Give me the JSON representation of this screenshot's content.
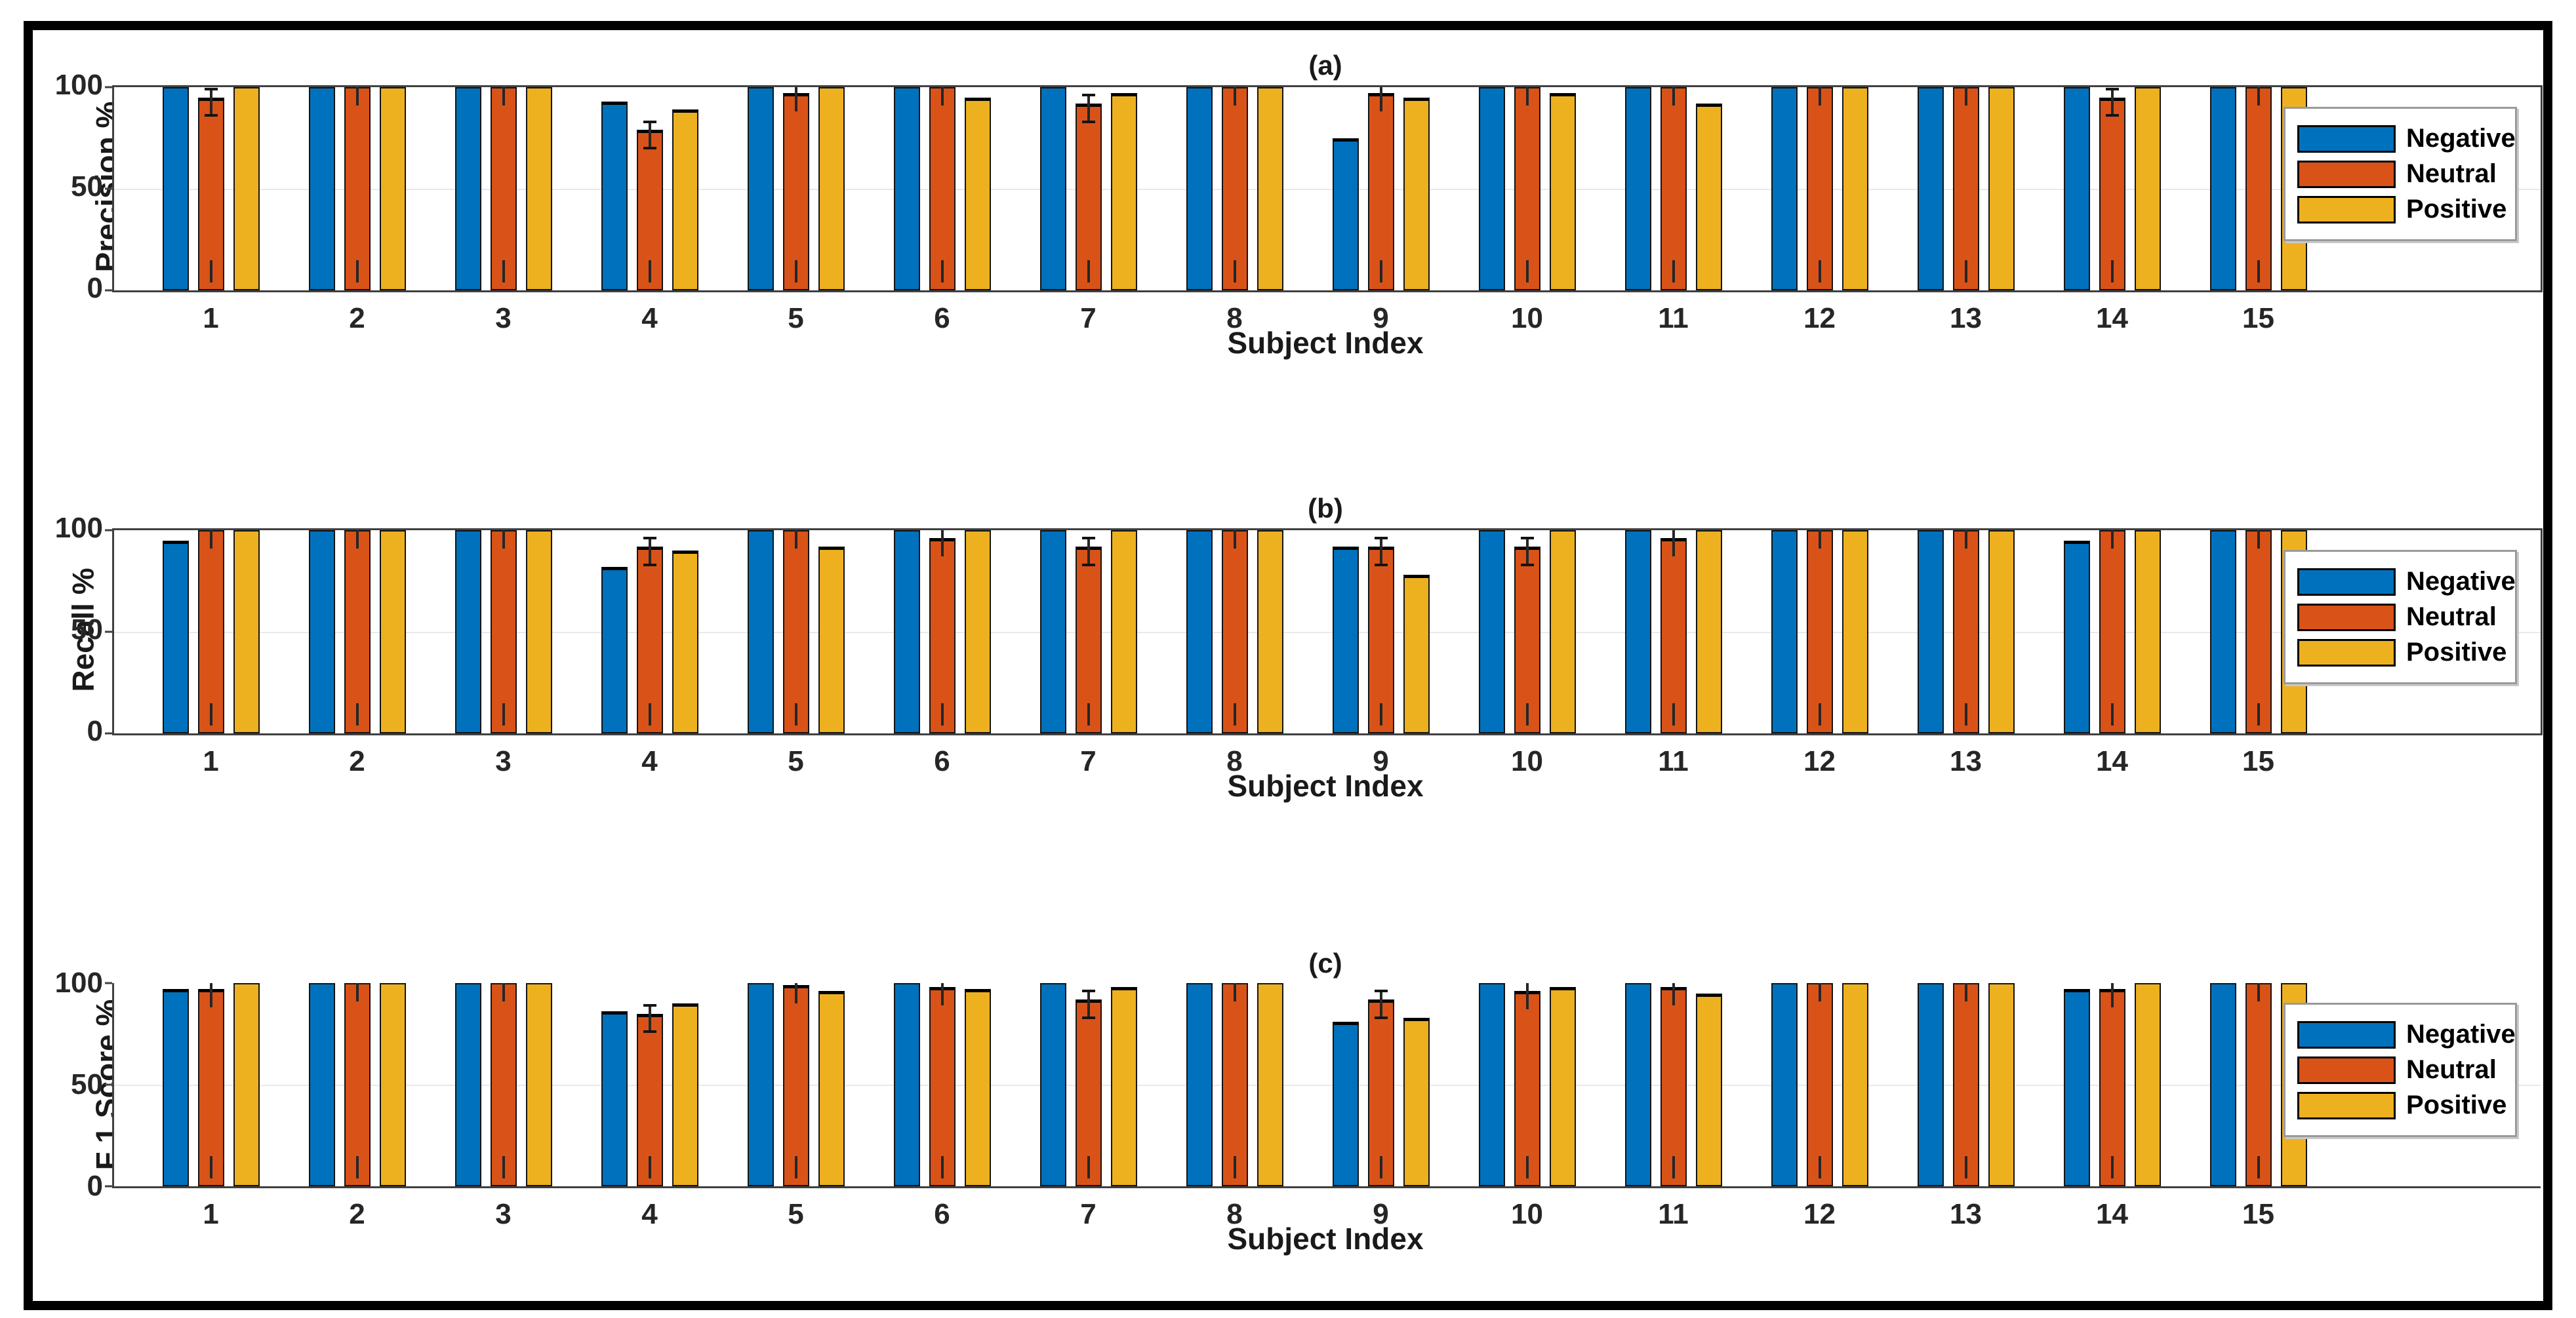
{
  "figure": {
    "background": "#ffffff",
    "border_color": "#000000",
    "axis_color": "#404040",
    "grid_color": "#e9e9e9",
    "text_color": "#1a1a1a"
  },
  "legend": {
    "position": "right-inside",
    "items": [
      {
        "label": "Negative",
        "color": "#0072BD"
      },
      {
        "label": "Neutral",
        "color": "#D95319"
      },
      {
        "label": "Positive",
        "color": "#EDB120"
      }
    ]
  },
  "chart_data": [
    {
      "id": "a",
      "type": "bar",
      "title": "(a)",
      "ylabel": "Precision %",
      "xlabel": "Subject Index",
      "categories": [
        "1",
        "2",
        "3",
        "4",
        "5",
        "6",
        "7",
        "8",
        "9",
        "10",
        "11",
        "12",
        "13",
        "14",
        "15"
      ],
      "yticks": [
        0,
        50,
        100
      ],
      "ylim": [
        0,
        100
      ],
      "grid": "horizontal gridline at 50",
      "box": true,
      "legend_position": "right-inside",
      "error_whiskers": "visible on Neutral bars and on bars below 100",
      "series": [
        {
          "name": "Negative",
          "color": "#0072BD",
          "values": [
            100,
            100,
            100,
            93,
            100,
            100,
            100,
            100,
            75,
            100,
            100,
            100,
            100,
            100,
            100
          ]
        },
        {
          "name": "Neutral",
          "color": "#D95319",
          "values": [
            95,
            100,
            100,
            79,
            97,
            100,
            92,
            100,
            97,
            100,
            100,
            100,
            100,
            95,
            100
          ]
        },
        {
          "name": "Positive",
          "color": "#EDB120",
          "values": [
            100,
            100,
            100,
            89,
            100,
            95,
            97,
            100,
            95,
            97,
            92,
            100,
            100,
            100,
            100
          ]
        }
      ]
    },
    {
      "id": "b",
      "type": "bar",
      "title": "(b)",
      "ylabel": "Recall %",
      "xlabel": "Subject Index",
      "categories": [
        "1",
        "2",
        "3",
        "4",
        "5",
        "6",
        "7",
        "8",
        "9",
        "10",
        "11",
        "12",
        "13",
        "14",
        "15"
      ],
      "yticks": [
        0,
        50,
        100
      ],
      "ylim": [
        0,
        100
      ],
      "grid": "horizontal gridline at 50",
      "box": true,
      "legend_position": "right-inside",
      "error_whiskers": "visible on Neutral bars and on bars below 100",
      "series": [
        {
          "name": "Negative",
          "color": "#0072BD",
          "values": [
            95,
            100,
            100,
            82,
            100,
            100,
            100,
            100,
            92,
            100,
            100,
            100,
            100,
            95,
            100
          ]
        },
        {
          "name": "Neutral",
          "color": "#D95319",
          "values": [
            100,
            100,
            100,
            92,
            100,
            96,
            92,
            100,
            92,
            92,
            96,
            100,
            100,
            100,
            100
          ]
        },
        {
          "name": "Positive",
          "color": "#EDB120",
          "values": [
            100,
            100,
            100,
            90,
            92,
            100,
            100,
            100,
            78,
            100,
            100,
            100,
            100,
            100,
            100
          ]
        }
      ]
    },
    {
      "id": "c",
      "type": "bar",
      "title": "(c)",
      "ylabel": "F 1 Score %",
      "xlabel": "Subject Index",
      "categories": [
        "1",
        "2",
        "3",
        "4",
        "5",
        "6",
        "7",
        "8",
        "9",
        "10",
        "11",
        "12",
        "13",
        "14",
        "15"
      ],
      "yticks": [
        0,
        50,
        100
      ],
      "ylim": [
        0,
        100
      ],
      "grid": "horizontal gridline at 50",
      "box": false,
      "legend_position": "right-inside",
      "error_whiskers": "visible on Neutral bars and on bars below 100",
      "series": [
        {
          "name": "Negative",
          "color": "#0072BD",
          "values": [
            97,
            100,
            100,
            86,
            100,
            100,
            100,
            100,
            81,
            100,
            100,
            100,
            100,
            97,
            100
          ]
        },
        {
          "name": "Neutral",
          "color": "#D95319",
          "values": [
            97,
            100,
            100,
            85,
            99,
            98,
            92,
            100,
            92,
            96,
            98,
            100,
            100,
            97,
            100
          ]
        },
        {
          "name": "Positive",
          "color": "#EDB120",
          "values": [
            100,
            100,
            100,
            90,
            96,
            97,
            98,
            100,
            83,
            98,
            95,
            100,
            100,
            100,
            100
          ]
        }
      ]
    }
  ]
}
